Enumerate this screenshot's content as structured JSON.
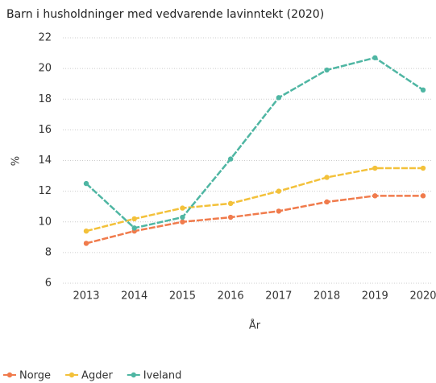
{
  "chart_data": {
    "type": "line",
    "title": "Barn i husholdninger med vedvarende lavinntekt (2020)",
    "y_label": "%",
    "x_label": "År",
    "categories": [
      "2013",
      "2014",
      "2015",
      "2016",
      "2017",
      "2018",
      "2019",
      "2020"
    ],
    "series": [
      {
        "name": "Norge",
        "color": "#f07b4c",
        "values": [
          8.6,
          9.4,
          10.0,
          10.3,
          10.7,
          11.3,
          11.7,
          11.7
        ]
      },
      {
        "name": "Agder",
        "color": "#f3c13a",
        "values": [
          9.4,
          10.2,
          10.9,
          11.2,
          12.0,
          12.9,
          13.5,
          13.5
        ]
      },
      {
        "name": "Iveland",
        "color": "#4fb6a3",
        "values": [
          12.5,
          9.6,
          10.3,
          14.1,
          18.1,
          19.9,
          20.7,
          18.6
        ]
      }
    ],
    "ylim": [
      6,
      22
    ],
    "yticks": [
      6,
      8,
      10,
      12,
      14,
      16,
      18,
      20,
      22
    ],
    "grid": true,
    "legend": "bottom"
  }
}
